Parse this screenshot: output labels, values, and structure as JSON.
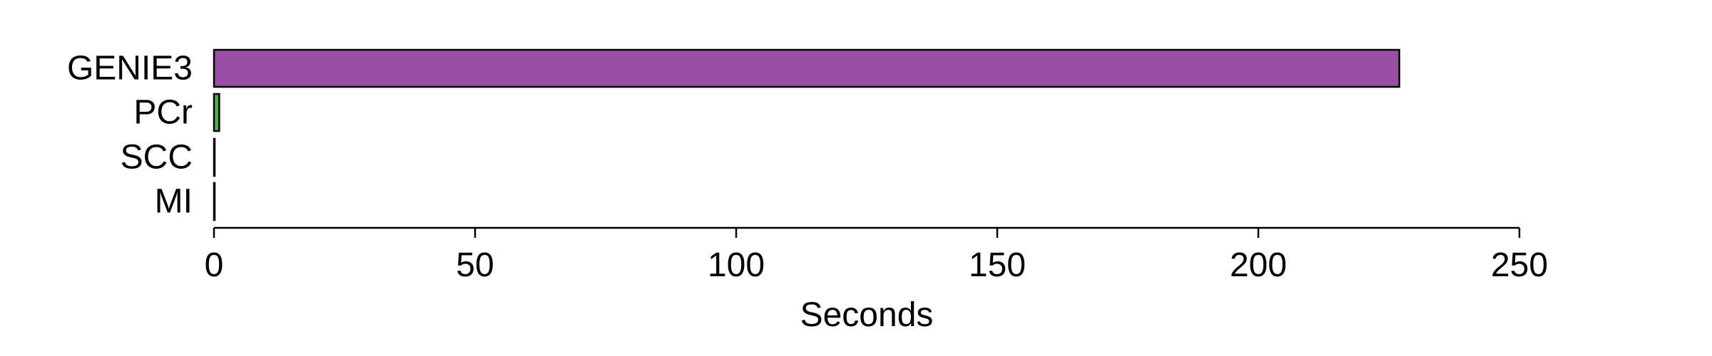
{
  "chart_data": {
    "type": "bar",
    "orientation": "horizontal",
    "title": "",
    "xlabel": "Seconds",
    "ylabel": "",
    "xlim": [
      0,
      250
    ],
    "x_ticks": [
      0,
      50,
      100,
      150,
      200,
      250
    ],
    "grid": false,
    "legend": "none",
    "categories": [
      "GENIE3",
      "PCr",
      "SCC",
      "MI"
    ],
    "values": [
      227,
      1,
      0.1,
      0.1
    ],
    "colors": [
      "#984EA3",
      "#4DAF4A",
      "#377EB8",
      "#E41A1C"
    ],
    "bar_outline": "#000000"
  }
}
